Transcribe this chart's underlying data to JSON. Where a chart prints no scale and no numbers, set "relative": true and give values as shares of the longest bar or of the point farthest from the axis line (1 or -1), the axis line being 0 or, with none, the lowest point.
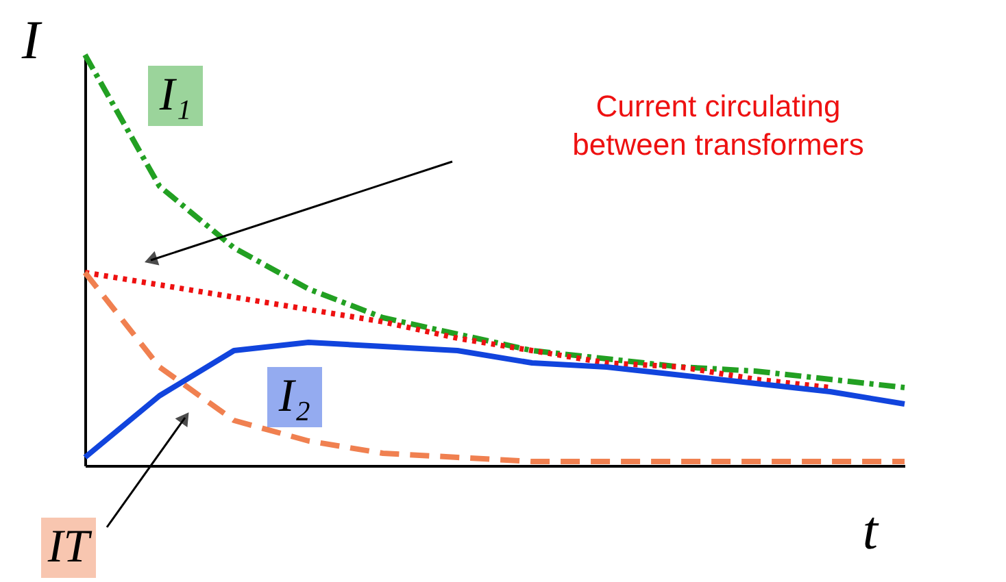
{
  "chart_data": {
    "type": "line",
    "relative": true,
    "xlabel": "t",
    "ylabel": "I",
    "marker": "none",
    "categories": [
      null,
      null,
      null,
      null,
      null,
      null,
      null,
      null,
      null,
      null,
      null,
      null
    ],
    "series": [
      {
        "name": "I₁",
        "color": "#22a022",
        "line_style": "dashdot",
        "values": [
          1.0,
          0.68,
          0.53,
          0.43,
          0.36,
          0.32,
          0.28,
          0.26,
          0.24,
          0.23,
          0.21,
          0.19
        ]
      },
      {
        "name": "Current circulating between transformers",
        "color": "#ee1111",
        "line_style": "dotted",
        "values": [
          0.47,
          0.44,
          0.41,
          0.38,
          0.35,
          0.31,
          0.28,
          0.25,
          0.24,
          0.21,
          0.19,
          null
        ]
      },
      {
        "name": "IT",
        "color": "#f08050",
        "line_style": "dashed",
        "values": [
          0.47,
          0.24,
          0.11,
          0.06,
          0.03,
          0.02,
          0.01,
          0.01,
          0.01,
          0.01,
          0.01,
          0.01
        ]
      },
      {
        "name": "I₂",
        "color": "#1144dd",
        "line_style": "solid",
        "values": [
          0.02,
          0.17,
          0.28,
          0.3,
          0.29,
          0.28,
          0.25,
          0.24,
          0.22,
          0.2,
          0.18,
          0.15
        ]
      }
    ]
  }
}
